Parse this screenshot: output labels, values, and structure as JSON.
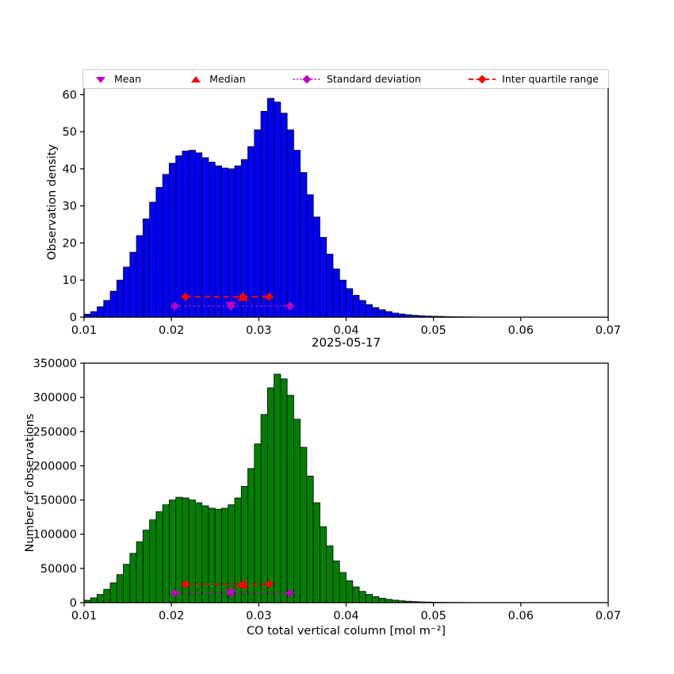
{
  "figure": {
    "title": "2025-05-17",
    "xlabel": "CO total vertical column [mol m⁻²]",
    "colors": {
      "bar_top": "#0000FF",
      "bar_bottom": "#008000",
      "magenta": "#BF00BF",
      "red": "#FF0000",
      "edge": "#000000"
    },
    "legend": [
      {
        "label": "Mean",
        "marker": "triangle-down",
        "color": "#BF00BF"
      },
      {
        "label": "Median",
        "marker": "triangle-up",
        "color": "#FF0000"
      },
      {
        "label": "Standard deviation",
        "marker": "diamond-dotted-line",
        "color": "#BF00BF"
      },
      {
        "label": "Inter quartile range",
        "marker": "diamond-dashed-line",
        "color": "#FF0000"
      }
    ]
  },
  "chart_data": [
    {
      "type": "bar",
      "id": "observation-density-histogram",
      "ylabel": "Observation density",
      "xlim": [
        0.01,
        0.07
      ],
      "ylim": [
        0,
        62
      ],
      "xticks": [
        0.01,
        0.02,
        0.03,
        0.04,
        0.05,
        0.06,
        0.07
      ],
      "yticks": [
        0,
        10,
        20,
        30,
        40,
        50,
        60
      ],
      "bar_color": "#0000FF",
      "bin_start": 0.01,
      "bin_width": 0.00075,
      "values": [
        0.8,
        1.5,
        2.8,
        4.5,
        7,
        10,
        13.5,
        17.5,
        22,
        26.5,
        31,
        35,
        38.5,
        41.5,
        43.5,
        44.8,
        45,
        44.3,
        43,
        41.8,
        40.8,
        40.2,
        40,
        40.8,
        42.5,
        46,
        50.5,
        55.5,
        59,
        58,
        55,
        50.5,
        45,
        39,
        33,
        27,
        21.5,
        17,
        13,
        10,
        7.7,
        5.9,
        4.5,
        3.4,
        2.6,
        2,
        1.5,
        1.1,
        0.85,
        0.65,
        0.5,
        0.4,
        0.3,
        0.25,
        0.2,
        0.15,
        0.12,
        0.1,
        0.07,
        0.05
      ],
      "stats": {
        "mean": 0.0268,
        "median": 0.0282,
        "std_range": [
          0.0204,
          0.0336
        ],
        "iqr_range": [
          0.0216,
          0.0312
        ],
        "std_line_y": 3.0,
        "iqr_line_y": 5.5
      }
    },
    {
      "type": "bar",
      "id": "number-of-observations-histogram",
      "ylabel": "Number of observations",
      "xlim": [
        0.01,
        0.07
      ],
      "ylim": [
        0,
        350000
      ],
      "xticks": [
        0.01,
        0.02,
        0.03,
        0.04,
        0.05,
        0.06,
        0.07
      ],
      "yticks": [
        0,
        50000,
        100000,
        150000,
        200000,
        250000,
        300000,
        350000
      ],
      "bar_color": "#008000",
      "bin_start": 0.01,
      "bin_width": 0.00075,
      "values": [
        3500,
        7000,
        12000,
        19500,
        29000,
        41000,
        56000,
        72000,
        89000,
        106000,
        121000,
        133000,
        143000,
        150000,
        154000,
        153000,
        150000,
        146000,
        141500,
        138000,
        136500,
        138000,
        143000,
        153000,
        170000,
        196000,
        232000,
        275000,
        314000,
        334000,
        327000,
        303000,
        268000,
        227000,
        185000,
        146000,
        111000,
        83000,
        61000,
        44000,
        32000,
        23000,
        16500,
        12000,
        8800,
        6500,
        4800,
        3600,
        2700,
        2000,
        1500,
        1150,
        870,
        660,
        500,
        380,
        290,
        220,
        170,
        130
      ],
      "stats": {
        "mean": 0.0268,
        "median": 0.0282,
        "std_range": [
          0.0204,
          0.0336
        ],
        "iqr_range": [
          0.0216,
          0.0312
        ],
        "std_line_y": 14000,
        "iqr_line_y": 27000
      }
    }
  ]
}
